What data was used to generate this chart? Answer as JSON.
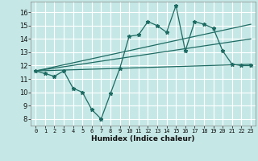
{
  "title": "",
  "xlabel": "Humidex (Indice chaleur)",
  "background_color": "#c5e8e6",
  "grid_color": "#ffffff",
  "line_color": "#1e6b63",
  "xlim": [
    -0.5,
    23.5
  ],
  "ylim": [
    7.5,
    16.8
  ],
  "xticks": [
    0,
    1,
    2,
    3,
    4,
    5,
    6,
    7,
    8,
    9,
    10,
    11,
    12,
    13,
    14,
    15,
    16,
    17,
    18,
    19,
    20,
    21,
    22,
    23
  ],
  "yticks": [
    8,
    9,
    10,
    11,
    12,
    13,
    14,
    15,
    16
  ],
  "curve_x": [
    0,
    1,
    2,
    3,
    4,
    5,
    6,
    7,
    8,
    9,
    10,
    11,
    12,
    13,
    14,
    15,
    16,
    17,
    18,
    19,
    20,
    21,
    22,
    23
  ],
  "curve_y": [
    11.6,
    11.4,
    11.2,
    11.6,
    10.3,
    10.0,
    8.7,
    8.0,
    9.9,
    11.8,
    14.2,
    14.3,
    15.3,
    15.0,
    14.5,
    16.5,
    13.1,
    15.3,
    15.1,
    14.8,
    13.1,
    12.1,
    12.0,
    12.0
  ],
  "trend1_y_start": 11.6,
  "trend1_y_end": 15.1,
  "trend2_y_start": 11.6,
  "trend2_y_end": 14.0,
  "trend3_y_start": 11.6,
  "trend3_y_end": 12.1
}
